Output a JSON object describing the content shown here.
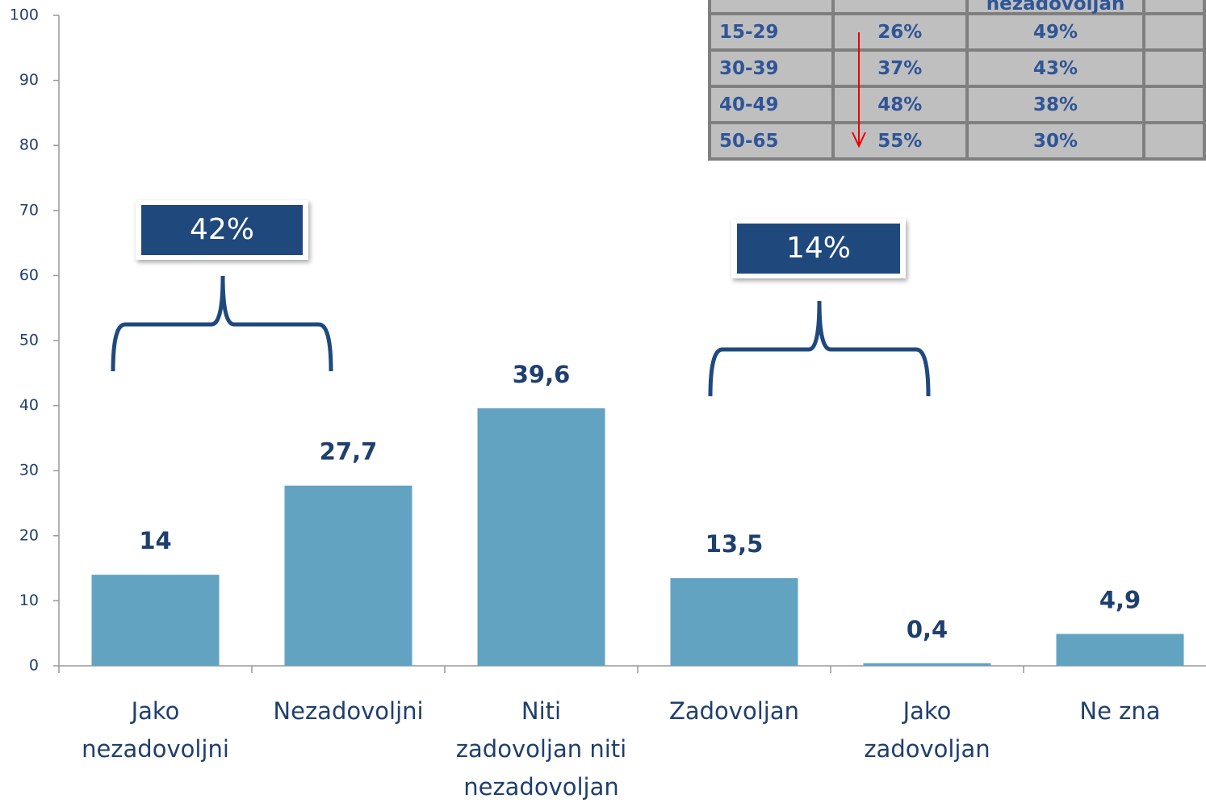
{
  "chart_data": {
    "type": "bar",
    "categories": [
      [
        "Jako",
        "nezadovoljni"
      ],
      [
        "Nezadovoljni"
      ],
      [
        "Niti",
        "zadovoljan niti",
        "nezadovoljan"
      ],
      [
        "Zadovoljan"
      ],
      [
        "Jako",
        "zadovoljan"
      ],
      [
        "Ne zna"
      ]
    ],
    "values": [
      14,
      27.7,
      39.6,
      13.5,
      0.4,
      4.9
    ],
    "value_labels": [
      "14",
      "27,7",
      "39,6",
      "13,5",
      "0,4",
      "4,9"
    ],
    "color": "#62a3c2",
    "ylim": [
      0,
      100
    ],
    "yticks": [
      0,
      10,
      20,
      30,
      40,
      50,
      60,
      70,
      80,
      90,
      100
    ],
    "annotations": [
      "42%",
      "14%"
    ]
  },
  "table": {
    "header": "nezadovoljan",
    "rows": [
      [
        "15-29",
        "26%",
        "49%"
      ],
      [
        "30-39",
        "37%",
        "43%"
      ],
      [
        "40-49",
        "48%",
        "38%"
      ],
      [
        "50-65",
        "55%",
        "30%"
      ]
    ]
  }
}
